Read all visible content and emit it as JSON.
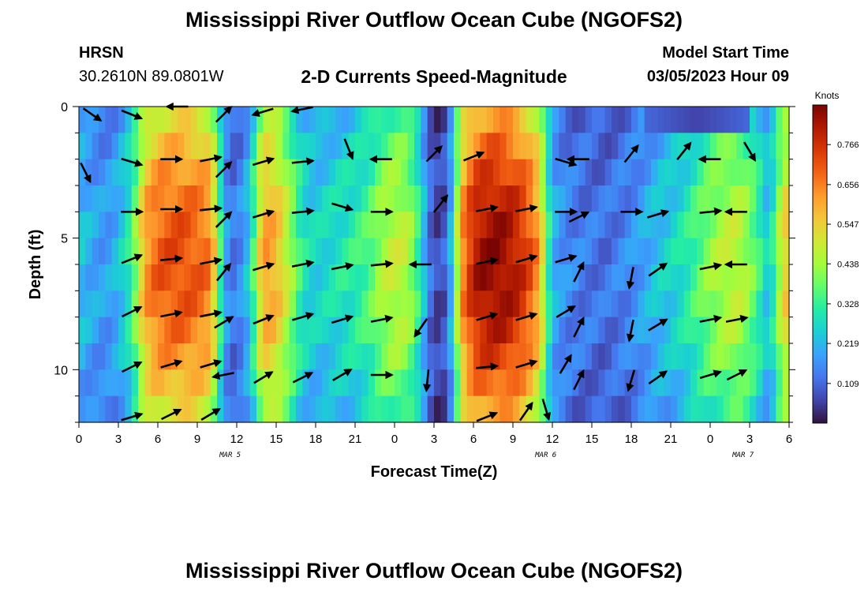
{
  "page": {
    "title": "Mississippi River Outflow Ocean Cube (NGOFS2)",
    "title_repeat": "Mississippi River Outflow Ocean Cube (NGOFS2)"
  },
  "header": {
    "station_name": "HRSN",
    "station_coords": "30.2610N  89.0801W",
    "subtitle": "2-D Currents Speed-Magnitude",
    "model_start_label": "Model Start Time",
    "model_start_value": "03/05/2023 Hour 09"
  },
  "chart_data": {
    "type": "heatmap",
    "title": "2-D Currents Speed-Magnitude",
    "xlabel": "Forecast Time(Z)",
    "ylabel": "Depth (ft)",
    "x_hours_range": [
      0,
      54
    ],
    "y_range": [
      0,
      12
    ],
    "x_tick_labels": [
      "0",
      "3",
      "6",
      "9",
      "12",
      "15",
      "18",
      "21",
      "0",
      "3",
      "6",
      "9",
      "12",
      "15",
      "18",
      "21",
      "0",
      "3",
      "6"
    ],
    "date_labels": [
      {
        "label": "MAR 5",
        "hour": 11.5
      },
      {
        "label": "MAR 6",
        "hour": 35.5
      },
      {
        "label": "MAR 7",
        "hour": 50.5
      }
    ],
    "y_ticks": [
      0,
      5,
      10
    ],
    "colorbar": {
      "label": "Knots",
      "range": [
        0,
        0.875
      ],
      "ticks": [
        0.109,
        0.219,
        0.328,
        0.438,
        0.547,
        0.656,
        0.766
      ],
      "colors": [
        "#30123b",
        "#4145ab",
        "#4675ed",
        "#39a2fc",
        "#1bcfd4",
        "#24eca6",
        "#61fc6c",
        "#a4fc3b",
        "#d1e834",
        "#f3c63a",
        "#fe9b2d",
        "#f36315",
        "#d93806",
        "#b11901",
        "#7a0403"
      ]
    },
    "speed_profile": {
      "hours": [
        0,
        1,
        2,
        3,
        4,
        4.5,
        5,
        6,
        7,
        8,
        9,
        10,
        10.5,
        11,
        11.5,
        12,
        13,
        13.5,
        14,
        15,
        16,
        17,
        18,
        19,
        20,
        21,
        22,
        23,
        24,
        25,
        26,
        26.5,
        27,
        27.5,
        28,
        28.5,
        29,
        30,
        31,
        32,
        33,
        34,
        35,
        35.5,
        36,
        37,
        38,
        39,
        40,
        41,
        42,
        43,
        44,
        45,
        46,
        47,
        48,
        49,
        50,
        51,
        52,
        52.5,
        53,
        54
      ],
      "speed": [
        0.24,
        0.2,
        0.18,
        0.22,
        0.33,
        0.48,
        0.62,
        0.7,
        0.72,
        0.72,
        0.7,
        0.66,
        0.45,
        0.22,
        0.14,
        0.13,
        0.25,
        0.45,
        0.62,
        0.6,
        0.45,
        0.3,
        0.26,
        0.28,
        0.3,
        0.32,
        0.36,
        0.44,
        0.48,
        0.46,
        0.3,
        0.15,
        0.08,
        0.06,
        0.12,
        0.3,
        0.62,
        0.8,
        0.85,
        0.85,
        0.82,
        0.75,
        0.62,
        0.4,
        0.22,
        0.16,
        0.14,
        0.13,
        0.12,
        0.14,
        0.16,
        0.2,
        0.24,
        0.26,
        0.3,
        0.36,
        0.42,
        0.46,
        0.48,
        0.42,
        0.3,
        0.22,
        0.4,
        0.6
      ]
    },
    "vectors": [
      {
        "hour": 1,
        "depth": 0.3,
        "dx": 1,
        "dy": 0.7
      },
      {
        "hour": 4,
        "depth": 0.3,
        "dx": 1,
        "dy": 0.4
      },
      {
        "hour": 7.5,
        "depth": 0,
        "dx": -1,
        "dy": 0
      },
      {
        "hour": 11,
        "depth": 0.3,
        "dx": 1,
        "dy": -1
      },
      {
        "hour": 14,
        "depth": 0.2,
        "dx": -1,
        "dy": 0.3
      },
      {
        "hour": 17,
        "depth": 0.1,
        "dx": -1,
        "dy": 0.2
      },
      {
        "hour": 0.5,
        "depth": 2.5,
        "dx": 0.5,
        "dy": 1
      },
      {
        "hour": 4,
        "depth": 2.1,
        "dx": 1,
        "dy": 0.3
      },
      {
        "hour": 7,
        "depth": 2,
        "dx": 1,
        "dy": 0
      },
      {
        "hour": 10,
        "depth": 2,
        "dx": 1,
        "dy": -0.2
      },
      {
        "hour": 11,
        "depth": 2.4,
        "dx": 1,
        "dy": -1
      },
      {
        "hour": 14,
        "depth": 2.1,
        "dx": 1,
        "dy": -0.3
      },
      {
        "hour": 17,
        "depth": 2.1,
        "dx": 1,
        "dy": -0.1
      },
      {
        "hour": 20.5,
        "depth": 1.6,
        "dx": 0.4,
        "dy": 1
      },
      {
        "hour": 23,
        "depth": 2,
        "dx": -1,
        "dy": 0
      },
      {
        "hour": 27,
        "depth": 1.8,
        "dx": 1,
        "dy": -1
      },
      {
        "hour": 30,
        "depth": 1.9,
        "dx": 1,
        "dy": -0.4
      },
      {
        "hour": 37,
        "depth": 2.1,
        "dx": 1,
        "dy": 0.3
      },
      {
        "hour": 38,
        "depth": 2,
        "dx": -1,
        "dy": 0
      },
      {
        "hour": 42,
        "depth": 1.8,
        "dx": 0.8,
        "dy": -1
      },
      {
        "hour": 46,
        "depth": 1.7,
        "dx": 0.8,
        "dy": -1
      },
      {
        "hour": 48,
        "depth": 2,
        "dx": -1,
        "dy": 0
      },
      {
        "hour": 51,
        "depth": 1.7,
        "dx": 0.6,
        "dy": 1
      },
      {
        "hour": 4,
        "depth": 4,
        "dx": 1,
        "dy": 0
      },
      {
        "hour": 7,
        "depth": 3.9,
        "dx": 1,
        "dy": 0
      },
      {
        "hour": 10,
        "depth": 3.9,
        "dx": 1,
        "dy": -0.1
      },
      {
        "hour": 11,
        "depth": 4.3,
        "dx": 1,
        "dy": -1
      },
      {
        "hour": 14,
        "depth": 4.1,
        "dx": 1,
        "dy": -0.3
      },
      {
        "hour": 17,
        "depth": 4,
        "dx": 1,
        "dy": -0.1
      },
      {
        "hour": 20,
        "depth": 3.8,
        "dx": 1,
        "dy": 0.3
      },
      {
        "hour": 23,
        "depth": 4,
        "dx": 1,
        "dy": 0
      },
      {
        "hour": 27.5,
        "depth": 3.7,
        "dx": 0.8,
        "dy": -1
      },
      {
        "hour": 31,
        "depth": 3.9,
        "dx": 1,
        "dy": -0.2
      },
      {
        "hour": 34,
        "depth": 3.9,
        "dx": 1,
        "dy": -0.2
      },
      {
        "hour": 37,
        "depth": 4,
        "dx": 1,
        "dy": 0
      },
      {
        "hour": 38,
        "depth": 4.2,
        "dx": 1,
        "dy": -0.5
      },
      {
        "hour": 42,
        "depth": 4,
        "dx": 1,
        "dy": 0
      },
      {
        "hour": 44,
        "depth": 4.1,
        "dx": 1,
        "dy": -0.3
      },
      {
        "hour": 48,
        "depth": 4,
        "dx": 1,
        "dy": -0.1
      },
      {
        "hour": 50,
        "depth": 4,
        "dx": -1,
        "dy": 0
      },
      {
        "hour": 4,
        "depth": 5.8,
        "dx": 1,
        "dy": -0.4
      },
      {
        "hour": 7,
        "depth": 5.8,
        "dx": 1,
        "dy": -0.1
      },
      {
        "hour": 10,
        "depth": 5.9,
        "dx": 1,
        "dy": -0.2
      },
      {
        "hour": 11,
        "depth": 6.3,
        "dx": 0.8,
        "dy": -1
      },
      {
        "hour": 14,
        "depth": 6.1,
        "dx": 1,
        "dy": -0.3
      },
      {
        "hour": 17,
        "depth": 6,
        "dx": 1,
        "dy": -0.2
      },
      {
        "hour": 20,
        "depth": 6.1,
        "dx": 1,
        "dy": -0.2
      },
      {
        "hour": 23,
        "depth": 6,
        "dx": 1,
        "dy": -0.1
      },
      {
        "hour": 26,
        "depth": 6,
        "dx": -1,
        "dy": 0
      },
      {
        "hour": 31,
        "depth": 5.9,
        "dx": 1,
        "dy": -0.2
      },
      {
        "hour": 34,
        "depth": 5.8,
        "dx": 1,
        "dy": -0.3
      },
      {
        "hour": 37,
        "depth": 5.8,
        "dx": 1,
        "dy": -0.3
      },
      {
        "hour": 38,
        "depth": 6.3,
        "dx": 0.5,
        "dy": -1
      },
      {
        "hour": 42,
        "depth": 6.5,
        "dx": -0.2,
        "dy": 1
      },
      {
        "hour": 44,
        "depth": 6.2,
        "dx": 1,
        "dy": -0.7
      },
      {
        "hour": 48,
        "depth": 6.1,
        "dx": 1,
        "dy": -0.2
      },
      {
        "hour": 50,
        "depth": 6,
        "dx": -1,
        "dy": 0
      },
      {
        "hour": 4,
        "depth": 7.8,
        "dx": 1,
        "dy": -0.5
      },
      {
        "hour": 7,
        "depth": 7.9,
        "dx": 1,
        "dy": -0.2
      },
      {
        "hour": 10,
        "depth": 7.9,
        "dx": 1,
        "dy": -0.2
      },
      {
        "hour": 11,
        "depth": 8.2,
        "dx": 1,
        "dy": -0.6
      },
      {
        "hour": 14,
        "depth": 8.1,
        "dx": 1,
        "dy": -0.4
      },
      {
        "hour": 17,
        "depth": 8,
        "dx": 1,
        "dy": -0.3
      },
      {
        "hour": 20,
        "depth": 8.1,
        "dx": 1,
        "dy": -0.3
      },
      {
        "hour": 23,
        "depth": 8.1,
        "dx": 1,
        "dy": -0.2
      },
      {
        "hour": 26,
        "depth": 8.4,
        "dx": -0.7,
        "dy": 1
      },
      {
        "hour": 31,
        "depth": 8,
        "dx": 1,
        "dy": -0.3
      },
      {
        "hour": 34,
        "depth": 8,
        "dx": 1,
        "dy": -0.3
      },
      {
        "hour": 37,
        "depth": 7.8,
        "dx": 1,
        "dy": -0.6
      },
      {
        "hour": 38,
        "depth": 8.4,
        "dx": 0.5,
        "dy": -1
      },
      {
        "hour": 42,
        "depth": 8.5,
        "dx": -0.2,
        "dy": 1
      },
      {
        "hour": 44,
        "depth": 8.3,
        "dx": 1,
        "dy": -0.6
      },
      {
        "hour": 48,
        "depth": 8.1,
        "dx": 1,
        "dy": -0.2
      },
      {
        "hour": 50,
        "depth": 8.1,
        "dx": 1,
        "dy": -0.2
      },
      {
        "hour": 4,
        "depth": 9.9,
        "dx": 1,
        "dy": -0.5
      },
      {
        "hour": 7,
        "depth": 9.8,
        "dx": 1,
        "dy": -0.3
      },
      {
        "hour": 10,
        "depth": 9.8,
        "dx": 1,
        "dy": -0.3
      },
      {
        "hour": 11,
        "depth": 10.2,
        "dx": -1,
        "dy": 0.2
      },
      {
        "hour": 14,
        "depth": 10.3,
        "dx": 1,
        "dy": -0.6
      },
      {
        "hour": 17,
        "depth": 10.3,
        "dx": 1,
        "dy": -0.5
      },
      {
        "hour": 20,
        "depth": 10.2,
        "dx": 1,
        "dy": -0.6
      },
      {
        "hour": 23,
        "depth": 10.2,
        "dx": 1,
        "dy": 0
      },
      {
        "hour": 26.5,
        "depth": 10.4,
        "dx": -0.1,
        "dy": 1
      },
      {
        "hour": 31,
        "depth": 9.9,
        "dx": 1,
        "dy": -0.1
      },
      {
        "hour": 34,
        "depth": 9.8,
        "dx": 1,
        "dy": -0.3
      },
      {
        "hour": 37,
        "depth": 9.8,
        "dx": 0.6,
        "dy": -1
      },
      {
        "hour": 38,
        "depth": 10.4,
        "dx": 0.5,
        "dy": -1
      },
      {
        "hour": 42,
        "depth": 10.4,
        "dx": -0.3,
        "dy": 1
      },
      {
        "hour": 44,
        "depth": 10.3,
        "dx": 1,
        "dy": -0.7
      },
      {
        "hour": 48,
        "depth": 10.2,
        "dx": 1,
        "dy": -0.3
      },
      {
        "hour": 50,
        "depth": 10.2,
        "dx": 1,
        "dy": -0.5
      },
      {
        "hour": 4,
        "depth": 11.8,
        "dx": 1,
        "dy": -0.3
      },
      {
        "hour": 7,
        "depth": 11.7,
        "dx": 1,
        "dy": -0.5
      },
      {
        "hour": 10,
        "depth": 11.7,
        "dx": 1,
        "dy": -0.6
      },
      {
        "hour": 31,
        "depth": 11.8,
        "dx": 1,
        "dy": -0.4
      },
      {
        "hour": 34,
        "depth": 11.6,
        "dx": 0.7,
        "dy": -1
      },
      {
        "hour": 35.5,
        "depth": 11.5,
        "dx": 0.3,
        "dy": 1
      }
    ]
  }
}
